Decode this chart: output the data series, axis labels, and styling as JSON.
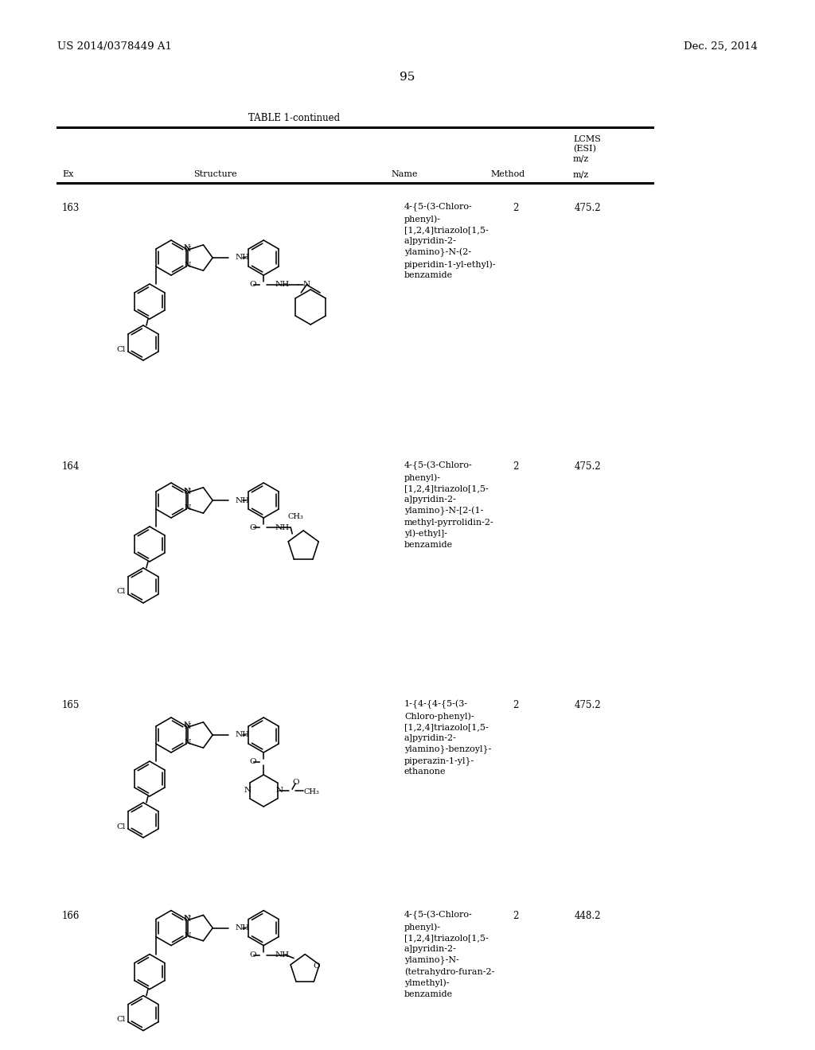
{
  "patent_number": "US 2014/0378449 A1",
  "date": "Dec. 25, 2014",
  "page_number": "95",
  "table_title": "TABLE 1-continued",
  "bg_color": "#ffffff",
  "text_color": "#000000",
  "rows": [
    {
      "ex": "163",
      "name": "4-{5-(3-Chloro-\nphenyl)-\n[1,2,4]triazolo[1,5-\na]pyridin-2-\nylamino}-N-(2-\npiperidin-1-yl-ethyl)-\nbenzamide",
      "method": "2",
      "mz": "475.2"
    },
    {
      "ex": "164",
      "name": "4-{5-(3-Chloro-\nphenyl)-\n[1,2,4]triazolo[1,5-\na]pyridin-2-\nylamino}-N-[2-(1-\nmethyl-pyrrolidin-2-\nyl)-ethyl]-\nbenzamide",
      "method": "2",
      "mz": "475.2"
    },
    {
      "ex": "165",
      "name": "1-{4-{4-{5-(3-\nChloro-phenyl)-\n[1,2,4]triazolo[1,5-\na]pyridin-2-\nylamino}-benzoyl}-\npiperazin-1-yl}-\nethanone",
      "method": "2",
      "mz": "475.2"
    },
    {
      "ex": "166",
      "name": "4-{5-(3-Chloro-\nphenyl)-\n[1,2,4]triazolo[1,5-\na]pyridin-2-\nylamino}-N-\n(tetrahydro-furan-2-\nylmethyl)-\nbenzamide",
      "method": "2",
      "mz": "448.2"
    }
  ]
}
